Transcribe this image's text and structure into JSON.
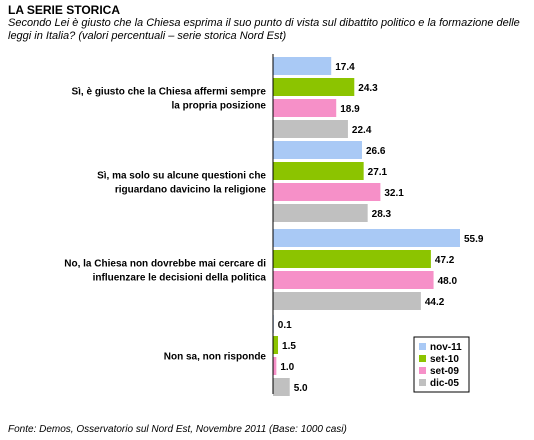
{
  "header": {
    "title": "LA SERIE STORICA",
    "subtitle": "Secondo Lei è giusto che la Chiesa esprima il suo punto di vista sul dibattito politico e la formazione delle leggi in Italia? (valori percentuali – serie storica Nord Est)"
  },
  "footer": {
    "source": "Fonte: Demos, Osservatorio sul Nord Est, Novembre  2011 (Base: 1000 casi)"
  },
  "chart_data": {
    "type": "bar",
    "orientation": "horizontal",
    "title": "LA SERIE STORICA",
    "categories": [
      [
        "Sì, è giusto che la Chiesa affermi sempre",
        "la propria posizione"
      ],
      [
        "Sì, ma solo su alcune questioni che",
        "riguardano davicino la religione"
      ],
      [
        "No, la Chiesa non dovrebbe mai cercare di",
        "influenzare le decisioni della politica"
      ],
      [
        "Non sa, non risponde"
      ]
    ],
    "series": [
      {
        "name": "nov-11",
        "color": "#a9c9f5",
        "values": [
          17.4,
          26.6,
          55.9,
          0.1
        ],
        "labels": [
          "17.4",
          "26.6",
          "55.9",
          "0.1"
        ]
      },
      {
        "name": "set-10",
        "color": "#8cc400",
        "values": [
          24.3,
          27.1,
          47.2,
          1.5
        ],
        "labels": [
          "24.3",
          "27.1",
          "47.2",
          "1.5"
        ]
      },
      {
        "name": "set-09",
        "color": "#f690c8",
        "values": [
          18.9,
          32.1,
          48.0,
          1.0
        ],
        "labels": [
          "18.9",
          "32.1",
          "48.0",
          "1.0"
        ]
      },
      {
        "name": "dic-05",
        "color": "#c0c0c0",
        "values": [
          22.4,
          28.3,
          44.2,
          5.0
        ],
        "labels": [
          "22.4",
          "28.3",
          "44.2",
          "5.0"
        ]
      }
    ],
    "xlim": [
      0,
      60
    ],
    "grid": false,
    "legend": "bottom-right"
  }
}
